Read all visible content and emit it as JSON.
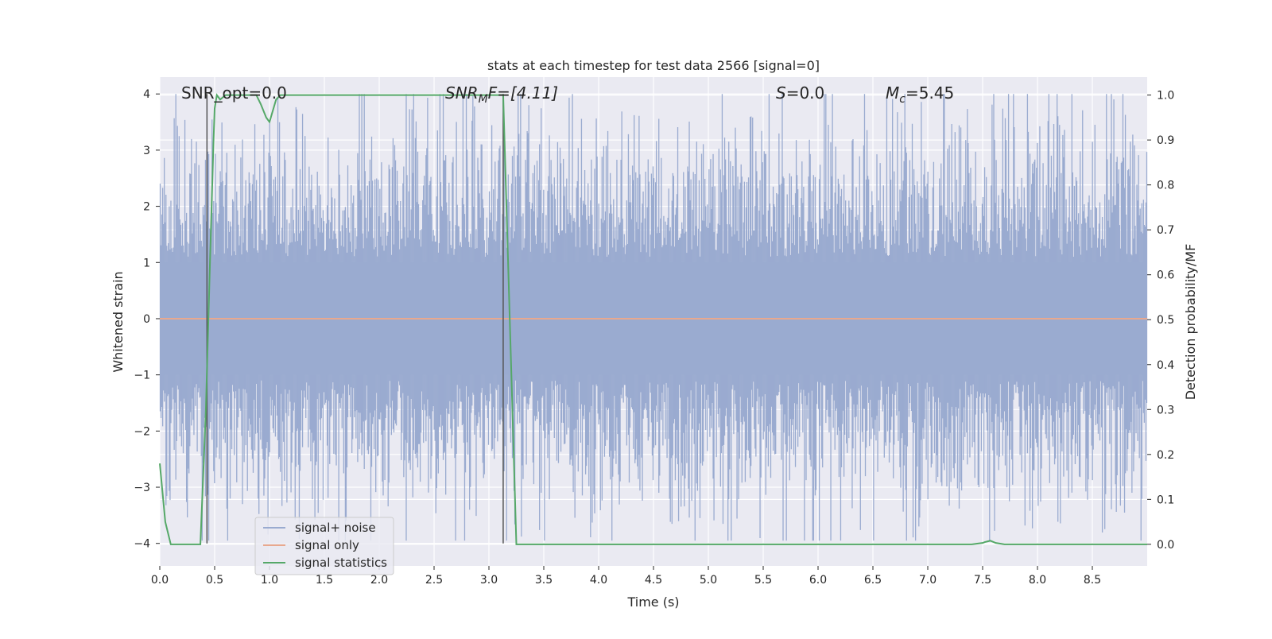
{
  "chart_data": {
    "type": "line",
    "title": "stats at each timestep for test data 2566 [signal=0]",
    "xlabel": "Time (s)",
    "ylabel": "Whitened strain",
    "y2label": "Detection probability/MF",
    "xlim": [
      0.0,
      9.0
    ],
    "ylim": [
      -4.4,
      4.3
    ],
    "y2lim": [
      -0.048,
      1.04
    ],
    "x_ticks": [
      "0.0",
      "0.5",
      "1.0",
      "1.5",
      "2.0",
      "2.5",
      "3.0",
      "3.5",
      "4.0",
      "4.5",
      "5.0",
      "5.5",
      "6.0",
      "6.5",
      "7.0",
      "7.5",
      "8.0",
      "8.5"
    ],
    "y_ticks": [
      "−4",
      "−3",
      "−2",
      "−1",
      "0",
      "1",
      "2",
      "3",
      "4"
    ],
    "y2_ticks": [
      "0.0",
      "0.1",
      "0.2",
      "0.3",
      "0.4",
      "0.5",
      "0.6",
      "0.7",
      "0.8",
      "0.9",
      "1.0"
    ],
    "grid": true,
    "legend_position": "lower-left",
    "annotations": {
      "snr_opt": "SNR_opt=0.0",
      "snr_mf_prefix": "SNR",
      "snr_mf_sub": "M",
      "snr_mf_rest": "F=[4.11]",
      "s_var": "S",
      "s_rest": "=0.0",
      "mc_var": "M",
      "mc_sub": "c",
      "mc_rest": "=5.45"
    },
    "series": [
      {
        "name": "signal+ noise",
        "color": "#9aabd0",
        "description_of_values": "whitened strain noise, approximately Gaussian, amplitude spanning about -3.9 to 4.0",
        "envelope_abs": 4.0
      },
      {
        "name": "signal only",
        "color": "#e8a88e",
        "x": [
          0.0,
          9.0
        ],
        "y": [
          0.0,
          0.0
        ]
      },
      {
        "name": "signal statistics",
        "color": "#55a868",
        "axis": "right",
        "x": [
          0.0,
          0.05,
          0.1,
          0.15,
          0.2,
          0.25,
          0.3,
          0.37,
          0.42,
          0.46,
          0.49,
          0.5,
          0.52,
          0.55,
          0.6,
          0.7,
          0.8,
          0.88,
          0.92,
          0.97,
          1.0,
          1.06,
          1.1,
          1.5,
          2.0,
          2.5,
          3.0,
          3.13,
          3.25,
          3.3,
          3.5,
          4.0,
          5.0,
          6.0,
          7.0,
          7.4,
          7.5,
          7.52,
          7.57,
          7.62,
          7.7,
          8.0,
          8.5,
          9.0
        ],
        "y": [
          0.18,
          0.05,
          0.0,
          0.0,
          0.0,
          0.0,
          0.0,
          0.0,
          0.3,
          0.65,
          0.9,
          0.97,
          1.0,
          0.99,
          1.0,
          1.0,
          1.0,
          1.0,
          0.98,
          0.95,
          0.94,
          0.99,
          1.0,
          1.0,
          1.0,
          1.0,
          1.0,
          1.0,
          0.0,
          0.0,
          0.0,
          0.0,
          0.0,
          0.0,
          0.0,
          0.0,
          0.003,
          0.005,
          0.008,
          0.003,
          0.0,
          0.0,
          0.0,
          0.0
        ]
      }
    ],
    "vertical_markers": [
      {
        "x": 0.43,
        "y_from": -4.0,
        "y_to": 4.0,
        "color": "#555555"
      },
      {
        "x": 3.13,
        "y_from": -4.0,
        "y_to": 4.0,
        "color": "#555555"
      }
    ]
  }
}
